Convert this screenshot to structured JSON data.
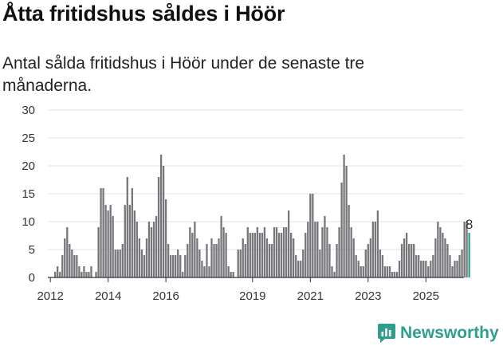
{
  "title": "Åtta fritidshus såldes i Höör",
  "subtitle": "Antal sålda fritidshus i Höör under de senaste tre månaderna.",
  "brand": {
    "name": "Newsworthy",
    "icon": "newsworthy-logo-icon",
    "color": "#2f9e8e"
  },
  "colors": {
    "bar": "#77767b",
    "highlight": "#2f9e8e",
    "grid": "#e2e2e2",
    "axis": "#333333"
  },
  "chart_data": {
    "type": "bar",
    "xlabel": "",
    "ylabel": "",
    "ylim": [
      0,
      30
    ],
    "y_ticks": [
      0,
      5,
      10,
      15,
      20,
      25,
      30
    ],
    "x_tick_labels": [
      "2012",
      "2014",
      "2016",
      "2019",
      "2021",
      "2023",
      "2025"
    ],
    "x_tick_index": [
      0,
      24,
      48,
      84,
      108,
      132,
      156
    ],
    "grid": true,
    "first_period": "2012-01",
    "period": "rolling 3 months, monthly",
    "annotation": {
      "label": "8",
      "value": 8
    },
    "values": [
      0,
      0,
      1,
      2,
      1,
      4,
      7,
      9,
      6,
      5,
      4,
      4,
      2,
      1,
      2,
      1,
      1,
      2,
      0,
      1,
      9,
      16,
      16,
      13,
      12,
      13,
      11,
      5,
      5,
      5,
      6,
      13,
      18,
      13,
      16,
      12,
      10,
      7,
      5,
      4,
      7,
      10,
      9,
      10,
      11,
      18,
      22,
      20,
      14,
      6,
      4,
      4,
      4,
      5,
      4,
      1,
      4,
      6,
      9,
      8,
      10,
      7,
      5,
      3,
      2,
      6,
      2,
      7,
      6,
      6,
      7,
      11,
      9,
      8,
      2,
      1,
      1,
      0,
      5,
      5,
      7,
      6,
      9,
      8,
      8,
      8,
      9,
      8,
      8,
      9,
      7,
      6,
      6,
      9,
      9,
      8,
      8,
      9,
      9,
      12,
      8,
      7,
      4,
      3,
      3,
      5,
      8,
      10,
      15,
      15,
      10,
      10,
      5,
      9,
      11,
      9,
      6,
      2,
      1,
      6,
      9,
      17,
      22,
      20,
      13,
      9,
      7,
      4,
      3,
      2,
      2,
      5,
      6,
      7,
      10,
      10,
      12,
      5,
      4,
      2,
      2,
      2,
      1,
      1,
      1,
      3,
      6,
      7,
      8,
      6,
      6,
      6,
      4,
      4,
      3,
      3,
      3,
      2,
      3,
      4,
      7,
      10,
      9,
      8,
      7,
      6,
      4,
      2,
      3,
      3,
      4,
      5,
      10,
      10,
      8
    ]
  }
}
